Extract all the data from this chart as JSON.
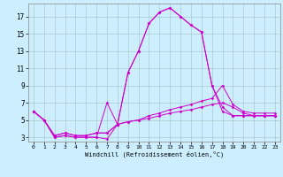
{
  "xlabel": "Windchill (Refroidissement éolien,°C)",
  "xlim": [
    -0.5,
    23.5
  ],
  "ylim": [
    2.5,
    18.5
  ],
  "yticks": [
    3,
    5,
    7,
    9,
    11,
    13,
    15,
    17
  ],
  "xticks": [
    0,
    1,
    2,
    3,
    4,
    5,
    6,
    7,
    8,
    9,
    10,
    11,
    12,
    13,
    14,
    15,
    16,
    17,
    18,
    19,
    20,
    21,
    22,
    23
  ],
  "background_color": "#cceeff",
  "line_color": "#cc00cc",
  "grid_color": "#aacccc",
  "lines": [
    {
      "x": [
        0,
        1,
        2,
        3,
        4,
        5,
        6,
        7,
        8,
        9,
        10,
        11,
        12,
        13,
        14,
        15,
        16,
        17,
        18,
        19,
        20,
        21,
        22,
        23
      ],
      "y": [
        6.0,
        5.0,
        3.0,
        3.2,
        3.0,
        3.0,
        3.0,
        2.8,
        4.5,
        10.5,
        13.0,
        16.2,
        17.5,
        18.0,
        17.0,
        16.0,
        15.2,
        9.0,
        6.0,
        5.5,
        5.5,
        5.5,
        5.5,
        5.5
      ]
    },
    {
      "x": [
        0,
        1,
        2,
        3,
        4,
        5,
        6,
        7,
        8,
        9,
        10,
        11,
        12,
        13,
        14,
        15,
        16,
        17,
        18,
        19,
        20,
        21,
        22,
        23
      ],
      "y": [
        6.0,
        5.0,
        3.0,
        3.2,
        3.0,
        3.0,
        3.0,
        7.0,
        4.5,
        10.5,
        13.0,
        16.2,
        17.5,
        18.0,
        17.0,
        16.0,
        15.2,
        9.0,
        6.5,
        5.5,
        5.5,
        5.5,
        5.5,
        5.5
      ]
    },
    {
      "x": [
        0,
        1,
        2,
        3,
        4,
        5,
        6,
        7,
        8,
        9,
        10,
        11,
        12,
        13,
        14,
        15,
        16,
        17,
        18,
        19,
        20,
        21,
        22,
        23
      ],
      "y": [
        6.0,
        5.0,
        3.2,
        3.5,
        3.2,
        3.2,
        3.5,
        3.5,
        4.5,
        4.8,
        5.0,
        5.5,
        5.8,
        6.2,
        6.5,
        6.8,
        7.2,
        7.5,
        9.0,
        6.8,
        6.0,
        5.8,
        5.8,
        5.8
      ]
    },
    {
      "x": [
        0,
        1,
        2,
        3,
        4,
        5,
        6,
        7,
        8,
        9,
        10,
        11,
        12,
        13,
        14,
        15,
        16,
        17,
        18,
        19,
        20,
        21,
        22,
        23
      ],
      "y": [
        6.0,
        5.0,
        3.2,
        3.5,
        3.2,
        3.2,
        3.5,
        3.5,
        4.5,
        4.8,
        5.0,
        5.2,
        5.5,
        5.8,
        6.0,
        6.2,
        6.5,
        6.8,
        7.0,
        6.5,
        5.8,
        5.5,
        5.5,
        5.5
      ]
    }
  ]
}
